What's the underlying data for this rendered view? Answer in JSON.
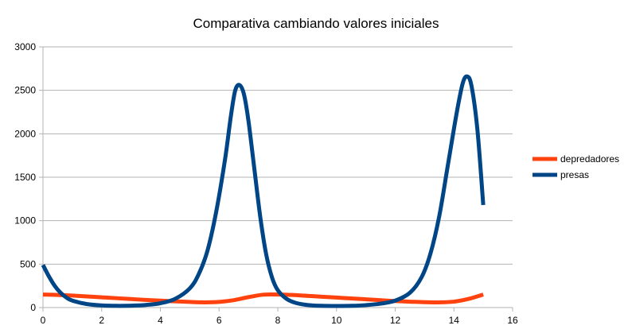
{
  "chart_data": {
    "type": "line",
    "title": "Comparativa cambiando valores iniciales",
    "xlabel": "",
    "ylabel": "",
    "xlim": [
      0,
      16
    ],
    "ylim": [
      0,
      3000
    ],
    "x_ticks": [
      "0",
      "2",
      "4",
      "6",
      "8",
      "10",
      "12",
      "14",
      "16"
    ],
    "y_ticks": [
      "0",
      "500",
      "1000",
      "1500",
      "2000",
      "2500",
      "3000"
    ],
    "grid": true,
    "legend_position": "right",
    "series": [
      {
        "name": "depredadores",
        "color": "#ff420e",
        "points": [
          [
            0,
            150
          ],
          [
            0.5,
            145
          ],
          [
            1,
            138
          ],
          [
            1.5,
            128
          ],
          [
            2,
            118
          ],
          [
            2.5,
            108
          ],
          [
            3,
            98
          ],
          [
            3.5,
            88
          ],
          [
            4,
            80
          ],
          [
            4.5,
            72
          ],
          [
            5,
            65
          ],
          [
            5.5,
            60
          ],
          [
            6,
            65
          ],
          [
            6.5,
            85
          ],
          [
            7,
            120
          ],
          [
            7.5,
            148
          ],
          [
            8,
            150
          ],
          [
            8.5,
            145
          ],
          [
            9,
            135
          ],
          [
            9.5,
            125
          ],
          [
            10,
            115
          ],
          [
            10.5,
            105
          ],
          [
            11,
            95
          ],
          [
            11.5,
            85
          ],
          [
            12,
            75
          ],
          [
            12.5,
            68
          ],
          [
            13,
            62
          ],
          [
            13.5,
            60
          ],
          [
            14,
            68
          ],
          [
            14.5,
            100
          ],
          [
            15,
            150
          ]
        ]
      },
      {
        "name": "presas",
        "color": "#004586",
        "points": [
          [
            0,
            490
          ],
          [
            0.2,
            360
          ],
          [
            0.4,
            250
          ],
          [
            0.6,
            170
          ],
          [
            0.8,
            115
          ],
          [
            1,
            80
          ],
          [
            1.5,
            40
          ],
          [
            2,
            25
          ],
          [
            2.5,
            20
          ],
          [
            3,
            22
          ],
          [
            3.5,
            30
          ],
          [
            4,
            50
          ],
          [
            4.5,
            100
          ],
          [
            5,
            220
          ],
          [
            5.3,
            380
          ],
          [
            5.6,
            650
          ],
          [
            5.9,
            1100
          ],
          [
            6.2,
            1700
          ],
          [
            6.4,
            2200
          ],
          [
            6.55,
            2500
          ],
          [
            6.7,
            2560
          ],
          [
            6.85,
            2450
          ],
          [
            7,
            2150
          ],
          [
            7.2,
            1600
          ],
          [
            7.4,
            1050
          ],
          [
            7.6,
            620
          ],
          [
            7.8,
            350
          ],
          [
            8,
            200
          ],
          [
            8.3,
            100
          ],
          [
            8.6,
            55
          ],
          [
            9,
            30
          ],
          [
            9.5,
            20
          ],
          [
            10,
            18
          ],
          [
            10.5,
            20
          ],
          [
            11,
            28
          ],
          [
            11.5,
            45
          ],
          [
            12,
            80
          ],
          [
            12.5,
            170
          ],
          [
            12.9,
            350
          ],
          [
            13.2,
            620
          ],
          [
            13.5,
            1050
          ],
          [
            13.8,
            1650
          ],
          [
            14.1,
            2250
          ],
          [
            14.3,
            2580
          ],
          [
            14.45,
            2660
          ],
          [
            14.6,
            2550
          ],
          [
            14.8,
            2050
          ],
          [
            15,
            1180
          ]
        ]
      }
    ]
  }
}
